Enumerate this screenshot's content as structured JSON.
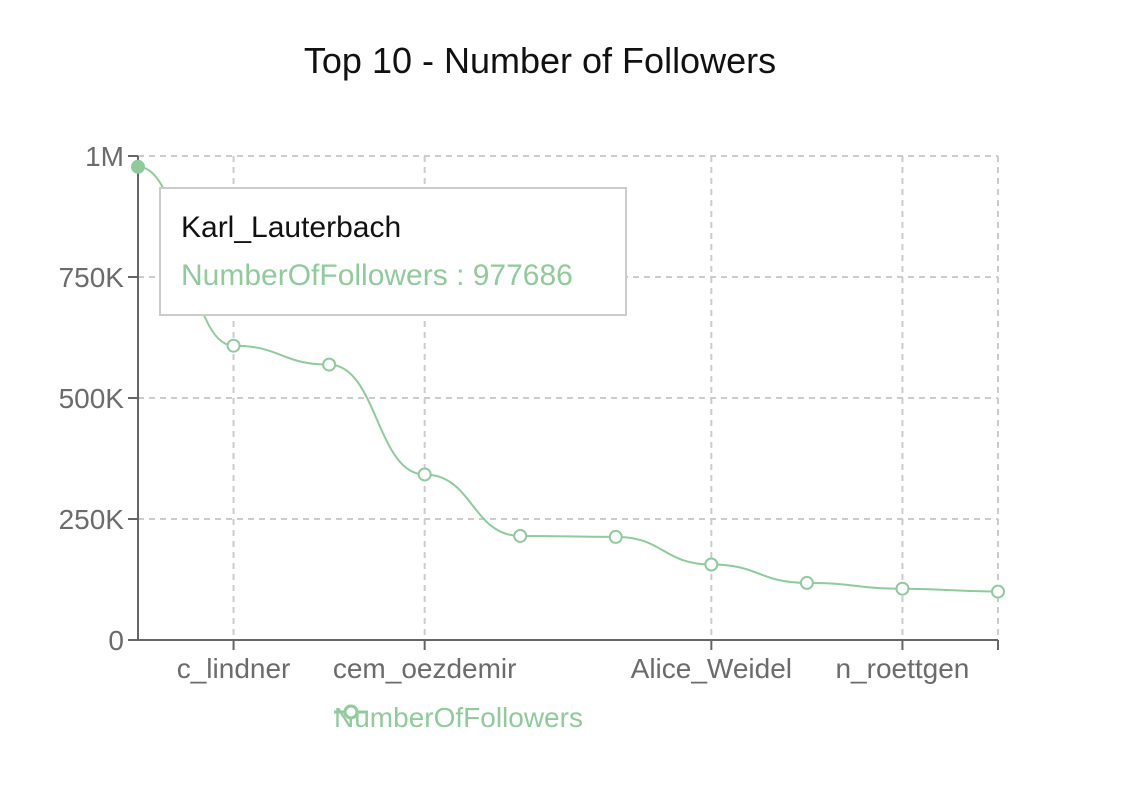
{
  "chart_data": {
    "type": "line",
    "title": "Top 10 - Number of Followers",
    "categories": [
      "Karl_Lauterbach",
      "c_lindner",
      "",
      "cem_oezdemir",
      "",
      "",
      "Alice_Weidel",
      "",
      "n_roettgen",
      ""
    ],
    "x_tick_labels": [
      "c_lindner",
      "cem_oezdemir",
      "Alice_Weidel",
      "n_roettgen"
    ],
    "series": [
      {
        "name": "NumberOfFollowers",
        "color": "#8fcb9b",
        "values": [
          977686,
          608000,
          569000,
          342000,
          215000,
          213000,
          156000,
          118000,
          106000,
          100000
        ]
      }
    ],
    "y_ticks": [
      0,
      250000,
      500000,
      750000,
      1000000
    ],
    "y_tick_labels": [
      "0",
      "250K",
      "500K",
      "750K",
      "1M"
    ],
    "ylim": [
      0,
      1000000
    ],
    "grid": true,
    "legend": "bottom"
  },
  "tooltip": {
    "label": "Karl_Lauterbach",
    "text": "NumberOfFollowers : 977686"
  }
}
